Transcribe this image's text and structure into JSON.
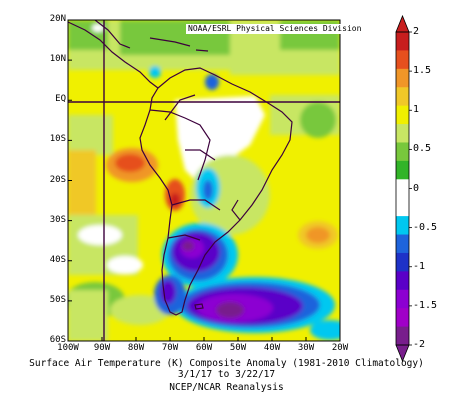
{
  "map": {
    "credit": "NOAA/ESRL Physical Sciences Division",
    "caption_line1": "Surface Air Temperature (K) Composite Anomaly (1981-2010 Climatology)",
    "caption_line2": "3/1/17 to 3/22/17",
    "caption_line3": "NCEP/NCAR Reanalysis",
    "lat_labels": [
      "20N",
      "10N",
      "EQ",
      "10S",
      "20S",
      "30S",
      "40S",
      "50S",
      "60S"
    ],
    "lon_labels": [
      "100W",
      "90W",
      "80W",
      "70W",
      "60W",
      "50W",
      "40W",
      "30W",
      "20W"
    ],
    "marked_lines": [
      "EQ",
      "90W"
    ]
  },
  "colorbar": {
    "labels": [
      "2",
      "1.5",
      "1",
      "0.5",
      "0",
      "-0.5",
      "-1",
      "-1.5",
      "-2"
    ],
    "colors": [
      "#c81e1e",
      "#e6501e",
      "#f09628",
      "#f0c828",
      "#f0f000",
      "#c8e664",
      "#78c83c",
      "#32b428",
      "#ffffff",
      "#ffffff",
      "#00c8f0",
      "#1e64dc",
      "#1e32c8",
      "#5a00c8",
      "#8c00d2",
      "#a000c8",
      "#781e8c"
    ]
  },
  "colors": {
    "land_border": "#3c003c",
    "reference_lines": "#3c003c"
  }
}
